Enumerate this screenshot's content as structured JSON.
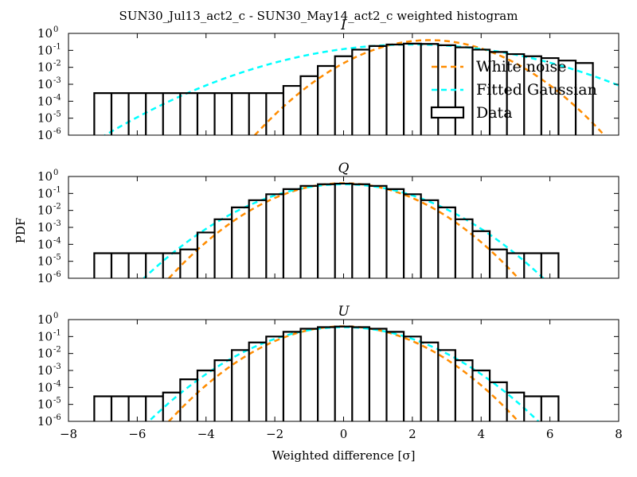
{
  "figure": {
    "title": "SUN30_Jul13_act2_c - SUN30_May14_act2_c weighted histogram",
    "shared_ylabel": "PDF",
    "shared_xlabel": "Weighted difference [σ]"
  },
  "colors": {
    "white_noise": "#ff8c00",
    "fitted_gaussian": "#00ffff",
    "data": "#000000"
  },
  "chart_data": [
    {
      "type": "line",
      "title": "I",
      "log_y": true,
      "xlim": [
        -8,
        8
      ],
      "ylim": [
        1e-06,
        1
      ],
      "x_ticks": [
        -8,
        -6,
        -4,
        -2,
        0,
        2,
        4,
        6,
        8
      ],
      "y_ticks": [
        {
          "base": "10",
          "exp": "0"
        },
        {
          "base": "10",
          "exp": "-1"
        },
        {
          "base": "10",
          "exp": "-2"
        },
        {
          "base": "10",
          "exp": "-3"
        },
        {
          "base": "10",
          "exp": "-4"
        },
        {
          "base": "10",
          "exp": "-5"
        },
        {
          "base": "10",
          "exp": "-6"
        }
      ],
      "legend": {
        "location": "right",
        "entries": [
          "White noise",
          "Fitted Gaussian",
          "Data"
        ]
      },
      "series": [
        {
          "name": "White noise",
          "style": "dashed",
          "mean": 2.5,
          "sigma": 1.0
        },
        {
          "name": "Fitted Gaussian",
          "style": "dashed",
          "mean": 2.0,
          "sigma": 1.8
        },
        {
          "name": "Data",
          "style": "histogram",
          "x": [
            -7.0,
            -6.5,
            -6.0,
            -5.5,
            -5.0,
            -4.5,
            -4.0,
            -3.5,
            -3.0,
            -2.5,
            -2.0,
            -1.5,
            -1.0,
            -0.5,
            0.0,
            0.5,
            1.0,
            1.5,
            2.0,
            2.5,
            3.0,
            3.5,
            4.0,
            4.5,
            5.0,
            5.5,
            6.0,
            6.5,
            7.0
          ],
          "y": [
            0.0003,
            0.0003,
            0.0003,
            0.0003,
            0.0003,
            0.0003,
            0.0003,
            0.0003,
            0.0003,
            0.0003,
            0.0003,
            0.0008,
            0.003,
            0.012,
            0.045,
            0.11,
            0.18,
            0.22,
            0.25,
            0.24,
            0.2,
            0.15,
            0.11,
            0.08,
            0.06,
            0.045,
            0.035,
            0.025,
            0.018
          ]
        }
      ]
    },
    {
      "type": "line",
      "title": "Q",
      "log_y": true,
      "xlim": [
        -8,
        8
      ],
      "ylim": [
        1e-06,
        1
      ],
      "x_ticks": [
        -8,
        -6,
        -4,
        -2,
        0,
        2,
        4,
        6,
        8
      ],
      "y_ticks": [
        {
          "base": "10",
          "exp": "0"
        },
        {
          "base": "10",
          "exp": "-1"
        },
        {
          "base": "10",
          "exp": "-2"
        },
        {
          "base": "10",
          "exp": "-3"
        },
        {
          "base": "10",
          "exp": "-4"
        },
        {
          "base": "10",
          "exp": "-5"
        },
        {
          "base": "10",
          "exp": "-6"
        }
      ],
      "series": [
        {
          "name": "White noise",
          "style": "dashed",
          "mean": 0.0,
          "sigma": 1.0
        },
        {
          "name": "Fitted Gaussian",
          "style": "dashed",
          "mean": 0.0,
          "sigma": 1.15
        },
        {
          "name": "Data",
          "style": "histogram",
          "x": [
            -7.0,
            -6.5,
            -6.0,
            -5.5,
            -5.0,
            -4.5,
            -4.0,
            -3.5,
            -3.0,
            -2.5,
            -2.0,
            -1.5,
            -1.0,
            -0.5,
            0.0,
            0.5,
            1.0,
            1.5,
            2.0,
            2.5,
            3.0,
            3.5,
            4.0,
            4.5,
            5.0,
            5.5,
            6.0,
            6.5,
            7.0
          ],
          "y": [
            3e-05,
            3e-05,
            3e-05,
            3e-05,
            3e-05,
            5e-05,
            0.0005,
            0.003,
            0.015,
            0.04,
            0.09,
            0.18,
            0.28,
            0.35,
            0.38,
            0.35,
            0.28,
            0.18,
            0.09,
            0.04,
            0.015,
            0.003,
            0.0006,
            5e-05,
            3e-05,
            3e-05,
            3e-05,
            null,
            null
          ]
        }
      ]
    },
    {
      "type": "line",
      "title": "U",
      "log_y": true,
      "xlim": [
        -8,
        8
      ],
      "ylim": [
        1e-06,
        1
      ],
      "x_ticks": [
        -8,
        -6,
        -4,
        -2,
        0,
        2,
        4,
        6,
        8
      ],
      "x_tick_labels": [
        "−8",
        "−6",
        "−4",
        "−2",
        "0",
        "2",
        "4",
        "6",
        "8"
      ],
      "xlabel": "Weighted difference [σ]",
      "y_ticks": [
        {
          "base": "10",
          "exp": "0"
        },
        {
          "base": "10",
          "exp": "-1"
        },
        {
          "base": "10",
          "exp": "-2"
        },
        {
          "base": "10",
          "exp": "-3"
        },
        {
          "base": "10",
          "exp": "-4"
        },
        {
          "base": "10",
          "exp": "-5"
        },
        {
          "base": "10",
          "exp": "-6"
        }
      ],
      "series": [
        {
          "name": "White noise",
          "style": "dashed",
          "mean": 0.0,
          "sigma": 1.0
        },
        {
          "name": "Fitted Gaussian",
          "style": "dashed",
          "mean": 0.0,
          "sigma": 1.12
        },
        {
          "name": "Data",
          "style": "histogram",
          "x": [
            -7.0,
            -6.5,
            -6.0,
            -5.5,
            -5.0,
            -4.5,
            -4.0,
            -3.5,
            -3.0,
            -2.5,
            -2.0,
            -1.5,
            -1.0,
            -0.5,
            0.0,
            0.5,
            1.0,
            1.5,
            2.0,
            2.5,
            3.0,
            3.5,
            4.0,
            4.5,
            5.0,
            5.5,
            6.0,
            6.5,
            7.0
          ],
          "y": [
            3e-05,
            3e-05,
            3e-05,
            3e-05,
            5e-05,
            0.0003,
            0.001,
            0.004,
            0.016,
            0.045,
            0.1,
            0.19,
            0.29,
            0.36,
            0.39,
            0.36,
            0.29,
            0.19,
            0.1,
            0.045,
            0.016,
            0.004,
            0.001,
            0.0002,
            5e-05,
            3e-05,
            3e-05,
            null,
            null
          ]
        }
      ]
    }
  ]
}
